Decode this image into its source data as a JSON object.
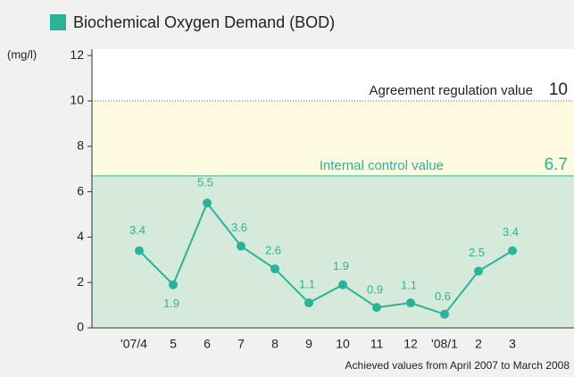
{
  "chart_data": {
    "type": "line",
    "title": "Biochemical Oxygen Demand (BOD)",
    "y_unit": "(mg/l)",
    "categories": [
      "'07/4",
      "5",
      "6",
      "7",
      "8",
      "9",
      "10",
      "11",
      "12",
      "'08/1",
      "2",
      "3"
    ],
    "series": [
      {
        "color": "#2bb39a",
        "values": [
          3.4,
          1.9,
          5.5,
          3.6,
          2.6,
          1.1,
          1.9,
          0.9,
          1.1,
          0.6,
          2.5,
          3.4
        ]
      }
    ],
    "ylim": [
      0,
      12
    ],
    "yticks": [
      0,
      2,
      4,
      6,
      8,
      10,
      12
    ],
    "reference_lines": [
      {
        "label": "Agreement regulation value",
        "value": 10,
        "color": "#fffbe0"
      },
      {
        "label": "Internal control value",
        "value": 6.7,
        "color": "#d5eadb"
      }
    ],
    "footnote": "Achieved values from April 2007 to March 2008"
  }
}
